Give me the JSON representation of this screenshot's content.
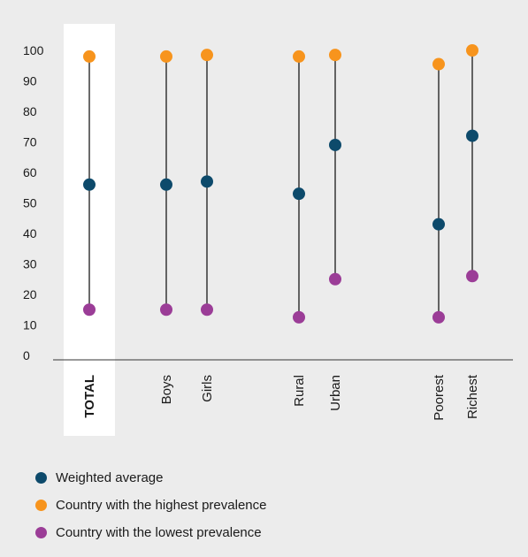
{
  "chart_data": {
    "type": "dot-range",
    "ylim": [
      0,
      100
    ],
    "yticks": [
      0,
      10,
      20,
      30,
      40,
      50,
      60,
      70,
      80,
      90,
      100
    ],
    "categories": [
      {
        "label": "TOTAL",
        "bold": true,
        "highlighted": true,
        "low": 15,
        "avg": 56,
        "high": 98
      },
      {
        "label": "Boys",
        "low": 15,
        "avg": 56,
        "high": 98
      },
      {
        "label": "Girls",
        "low": 15,
        "avg": 57,
        "high": 98.5
      },
      {
        "label": "Rural",
        "low": 12.5,
        "avg": 53,
        "high": 98
      },
      {
        "label": "Urban",
        "low": 25,
        "avg": 69,
        "high": 98.5
      },
      {
        "label": "Poorest",
        "low": 12.5,
        "avg": 43,
        "high": 95.5
      },
      {
        "label": "Richest",
        "low": 26,
        "avg": 72,
        "high": 100
      }
    ],
    "series": [
      {
        "key": "avg",
        "name": "Weighted average",
        "color": "#0d4a6b"
      },
      {
        "key": "high",
        "name": "Country with the highest prevalence",
        "color": "#f7941d"
      },
      {
        "key": "low",
        "name": "Country with the lowest prevalence",
        "color": "#9b3d97"
      }
    ],
    "grid": false,
    "legend_position": "bottom-left"
  }
}
